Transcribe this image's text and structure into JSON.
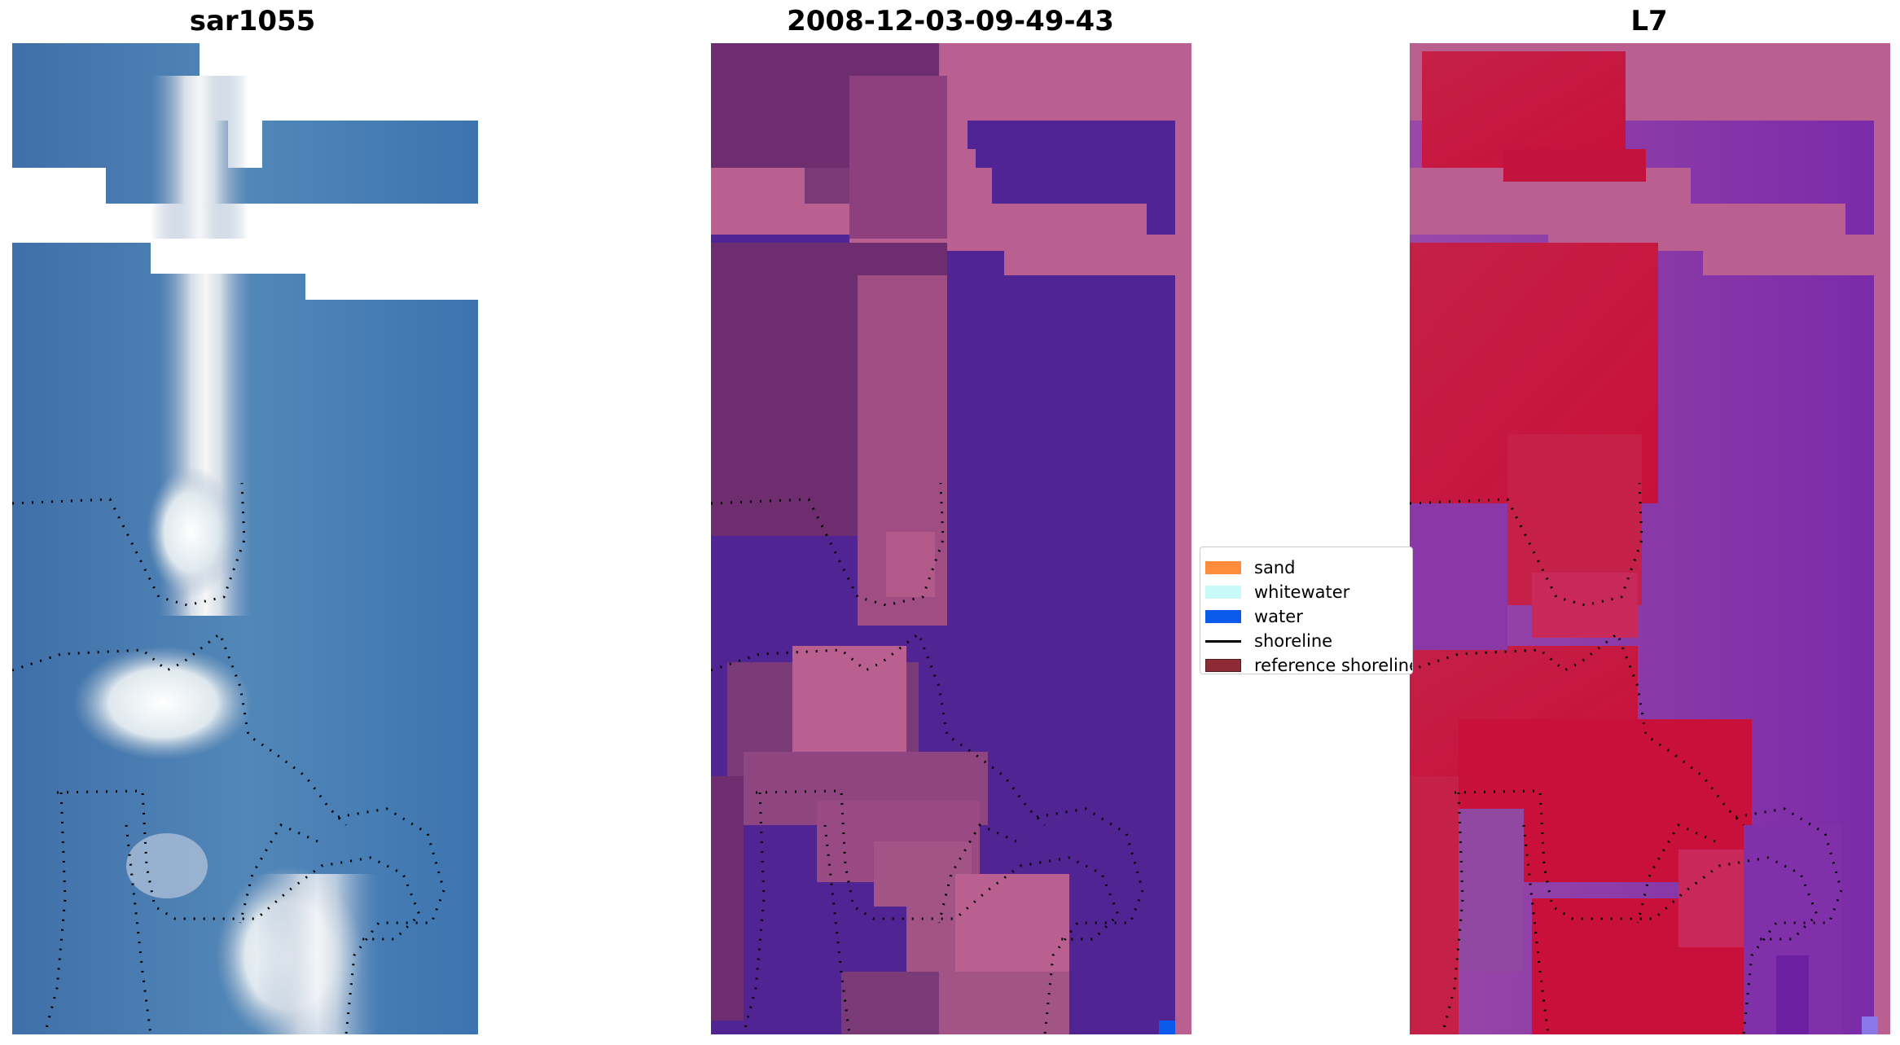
{
  "panels": [
    {
      "title": "sar1055"
    },
    {
      "title": "2008-12-03-09-49-43"
    },
    {
      "title": "L7"
    }
  ],
  "legend": {
    "items": [
      {
        "label": "sand",
        "color": "#ff8c3a",
        "kind": "patch"
      },
      {
        "label": "whitewater",
        "color": "#c8fafa",
        "kind": "patch"
      },
      {
        "label": "water",
        "color": "#0a5aeb",
        "kind": "patch"
      },
      {
        "label": "shoreline",
        "color": "#000000",
        "kind": "line"
      },
      {
        "label": "reference shoreline",
        "color": "#8c2b35",
        "kind": "patch"
      }
    ]
  },
  "colors": {
    "rgb_water": "#4a7fb0",
    "rgb_bright": "#f0f4f0",
    "class_water_dark": "#512493",
    "class_land_pink": "#b96090",
    "class_land_mauve": "#7a3a78",
    "class_water_blue": "#0a5aeb",
    "ndwi_red": "#c8123e",
    "ndwi_purple": "#8a38a8",
    "shoreline_dots": "#000000"
  }
}
